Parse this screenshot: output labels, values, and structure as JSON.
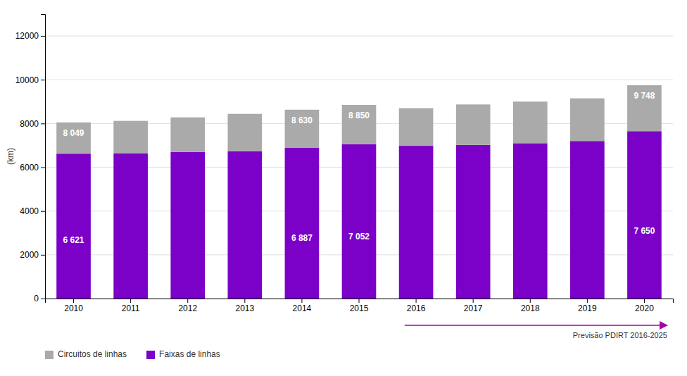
{
  "chart_data": {
    "type": "bar",
    "stacked": true,
    "categories": [
      "2010",
      "2011",
      "2012",
      "2013",
      "2014",
      "2015",
      "2016",
      "2017",
      "2018",
      "2019",
      "2020"
    ],
    "series": [
      {
        "name": "Faixas de linhas",
        "color": "#7B00C8",
        "values": [
          6621,
          6630,
          6700,
          6730,
          6887,
          7052,
          6980,
          7020,
          7100,
          7200,
          7650
        ],
        "value_labels": [
          "6 621",
          null,
          null,
          null,
          "6 887",
          "7 052",
          null,
          null,
          null,
          null,
          "7 650"
        ]
      },
      {
        "name": "Circuitos de linhas",
        "color": "#AAAAAA",
        "values": [
          1428,
          1490,
          1580,
          1710,
          1743,
          1798,
          1720,
          1850,
          1900,
          1950,
          2098
        ]
      }
    ],
    "totals": [
      8049,
      8120,
      8280,
      8440,
      8630,
      8850,
      8700,
      8870,
      9000,
      9150,
      9748
    ],
    "total_labels": [
      "8 049",
      null,
      null,
      null,
      "8 630",
      "8 850",
      null,
      null,
      null,
      null,
      "9 748"
    ],
    "y_label": "(km)",
    "ylim": [
      0,
      13000
    ],
    "yticks": [
      0,
      2000,
      4000,
      6000,
      8000,
      10000,
      12000
    ],
    "grid": true,
    "legend": "bottom",
    "annotations": [
      {
        "text": "Previsão PDIRT 2016-2025",
        "from": "2016",
        "to": "2020",
        "color": "#AA00AA"
      }
    ]
  }
}
